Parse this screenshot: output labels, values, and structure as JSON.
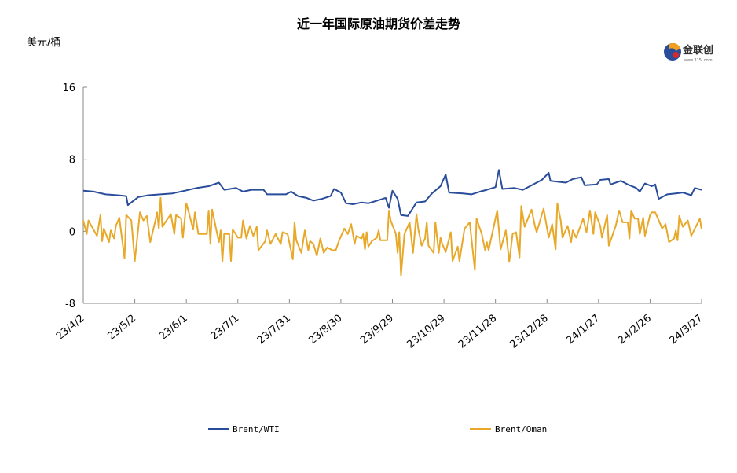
{
  "chart_data": {
    "type": "line",
    "title": "近一年国际原油期货价差走势",
    "ylabel": "美元/桶",
    "xlabel": "",
    "ylim": [
      -8,
      16
    ],
    "yticks": [
      -8,
      0,
      8,
      16
    ],
    "ytick_labels": [
      "-8",
      "0",
      "8",
      "16"
    ],
    "x_unit": "days since 23/4/2",
    "xlim": [
      0,
      360
    ],
    "xticks": [
      0,
      30,
      60,
      90,
      120,
      150,
      180,
      210,
      240,
      270,
      300,
      330,
      360
    ],
    "xtick_labels": [
      "23/4/2",
      "23/5/2",
      "23/6/1",
      "23/7/1",
      "23/7/31",
      "23/8/30",
      "23/9/29",
      "23/10/29",
      "23/11/28",
      "23/12/28",
      "24/1/27",
      "24/2/26",
      "24/3/27"
    ],
    "grid": false,
    "legend_position": "bottom",
    "series": [
      {
        "name": "Brent/WTI",
        "color": "#2a4d9b",
        "points": [
          [
            0,
            4.5
          ],
          [
            6,
            4.4
          ],
          [
            13,
            4.1
          ],
          [
            20,
            4.0
          ],
          [
            25,
            3.9
          ],
          [
            26,
            2.9
          ],
          [
            32,
            3.8
          ],
          [
            38,
            4.0
          ],
          [
            45,
            4.1
          ],
          [
            52,
            4.2
          ],
          [
            59,
            4.5
          ],
          [
            66,
            4.8
          ],
          [
            73,
            5.0
          ],
          [
            79,
            5.4
          ],
          [
            82,
            4.6
          ],
          [
            89,
            4.8
          ],
          [
            93,
            4.4
          ],
          [
            98,
            4.6
          ],
          [
            105,
            4.6
          ],
          [
            107,
            4.1
          ],
          [
            114,
            4.1
          ],
          [
            118,
            4.1
          ],
          [
            121,
            4.4
          ],
          [
            125,
            3.9
          ],
          [
            130,
            3.7
          ],
          [
            134,
            3.4
          ],
          [
            139,
            3.6
          ],
          [
            144,
            3.9
          ],
          [
            146,
            4.7
          ],
          [
            150,
            4.3
          ],
          [
            153,
            3.1
          ],
          [
            157,
            3.0
          ],
          [
            162,
            3.2
          ],
          [
            166,
            3.1
          ],
          [
            171,
            3.4
          ],
          [
            176,
            3.7
          ],
          [
            178,
            2.6
          ],
          [
            180,
            4.5
          ],
          [
            183,
            3.6
          ],
          [
            185,
            1.8
          ],
          [
            189,
            1.7
          ],
          [
            194,
            3.2
          ],
          [
            199,
            3.3
          ],
          [
            203,
            4.2
          ],
          [
            208,
            5.0
          ],
          [
            211,
            6.3
          ],
          [
            213,
            4.3
          ],
          [
            221,
            4.2
          ],
          [
            226,
            4.1
          ],
          [
            231,
            4.4
          ],
          [
            235,
            4.6
          ],
          [
            240,
            4.9
          ],
          [
            242,
            6.8
          ],
          [
            244,
            4.7
          ],
          [
            251,
            4.8
          ],
          [
            256,
            4.6
          ],
          [
            263,
            5.3
          ],
          [
            267,
            5.7
          ],
          [
            271,
            6.5
          ],
          [
            272,
            5.6
          ],
          [
            276,
            5.5
          ],
          [
            281,
            5.4
          ],
          [
            285,
            5.8
          ],
          [
            290,
            6.0
          ],
          [
            292,
            5.1
          ],
          [
            299,
            5.2
          ],
          [
            301,
            5.7
          ],
          [
            306,
            5.8
          ],
          [
            307,
            5.2
          ],
          [
            313,
            5.6
          ],
          [
            317,
            5.2
          ],
          [
            322,
            4.8
          ],
          [
            324,
            4.4
          ],
          [
            327,
            5.3
          ],
          [
            331,
            5.0
          ],
          [
            333,
            5.2
          ],
          [
            335,
            3.6
          ],
          [
            340,
            4.1
          ],
          [
            345,
            4.2
          ],
          [
            349,
            4.3
          ],
          [
            354,
            4.0
          ],
          [
            356,
            4.8
          ],
          [
            360,
            4.6
          ]
        ]
      },
      {
        "name": "Brent/Oman",
        "color": "#e8a92a",
        "points": [
          [
            0,
            1.2
          ],
          [
            2,
            -0.3
          ],
          [
            3,
            1.2
          ],
          [
            8,
            -0.5
          ],
          [
            10,
            1.8
          ],
          [
            11,
            -1.1
          ],
          [
            12,
            0.3
          ],
          [
            15,
            -1.2
          ],
          [
            16,
            0.1
          ],
          [
            18,
            -0.8
          ],
          [
            19,
            0.6
          ],
          [
            21,
            1.5
          ],
          [
            24,
            -3.0
          ],
          [
            25,
            1.8
          ],
          [
            28,
            1.2
          ],
          [
            30,
            -3.3
          ],
          [
            33,
            2.1
          ],
          [
            35,
            1.2
          ],
          [
            37,
            1.7
          ],
          [
            39,
            -1.2
          ],
          [
            42,
            1.2
          ],
          [
            43,
            2.1
          ],
          [
            44,
            0.3
          ],
          [
            45,
            3.7
          ],
          [
            46,
            0.5
          ],
          [
            51,
            1.9
          ],
          [
            53,
            -0.3
          ],
          [
            54,
            1.8
          ],
          [
            57,
            1.4
          ],
          [
            58,
            -0.7
          ],
          [
            60,
            3.1
          ],
          [
            61,
            2.4
          ],
          [
            64,
            0.2
          ],
          [
            65,
            2.1
          ],
          [
            67,
            -0.3
          ],
          [
            72,
            -0.3
          ],
          [
            73,
            2.3
          ],
          [
            74,
            -1.4
          ],
          [
            75,
            2.4
          ],
          [
            77,
            0.6
          ],
          [
            79,
            -1.2
          ],
          [
            80,
            0.1
          ],
          [
            81,
            -3.4
          ],
          [
            82,
            -0.3
          ],
          [
            85,
            -0.3
          ],
          [
            86,
            -3.3
          ],
          [
            87,
            0.2
          ],
          [
            90,
            -0.7
          ],
          [
            92,
            -0.7
          ],
          [
            93,
            1.2
          ],
          [
            95,
            -0.8
          ],
          [
            97,
            0.6
          ],
          [
            99,
            -0.5
          ],
          [
            101,
            0.5
          ],
          [
            102,
            -2.1
          ],
          [
            106,
            -1.1
          ],
          [
            107,
            0.1
          ],
          [
            109,
            -1.4
          ],
          [
            112,
            -0.3
          ],
          [
            115,
            -1.4
          ],
          [
            116,
            -0.1
          ],
          [
            119,
            -0.3
          ],
          [
            122,
            -3.1
          ],
          [
            123,
            1.0
          ],
          [
            124,
            -1.0
          ],
          [
            127,
            -2.4
          ],
          [
            129,
            0.1
          ],
          [
            131,
            -2.1
          ],
          [
            132,
            -1.1
          ],
          [
            134,
            -1.4
          ],
          [
            136,
            -2.7
          ],
          [
            138,
            -0.8
          ],
          [
            140,
            -2.4
          ],
          [
            142,
            -1.8
          ],
          [
            145,
            -2.1
          ],
          [
            147,
            -2.1
          ],
          [
            149,
            -1.0
          ],
          [
            152,
            0.3
          ],
          [
            154,
            -0.3
          ],
          [
            156,
            0.8
          ],
          [
            158,
            -1.4
          ],
          [
            159,
            -0.5
          ],
          [
            162,
            -0.8
          ],
          [
            163,
            -0.3
          ],
          [
            164,
            -2.0
          ],
          [
            165,
            -0.1
          ],
          [
            166,
            -1.7
          ],
          [
            168,
            -1.1
          ],
          [
            171,
            -0.7
          ],
          [
            172,
            0.1
          ],
          [
            173,
            -1.0
          ],
          [
            177,
            -1.0
          ],
          [
            178,
            2.3
          ],
          [
            179,
            1.2
          ],
          [
            182,
            -0.3
          ],
          [
            183,
            -2.4
          ],
          [
            184,
            -0.1
          ],
          [
            185,
            -4.9
          ],
          [
            187,
            -0.3
          ],
          [
            190,
            1.0
          ],
          [
            192,
            -2.4
          ],
          [
            194,
            1.9
          ],
          [
            195,
            0.3
          ],
          [
            197,
            -1.6
          ],
          [
            199,
            -0.8
          ],
          [
            200,
            1.0
          ],
          [
            201,
            -1.6
          ],
          [
            204,
            -2.4
          ],
          [
            205,
            1.0
          ],
          [
            207,
            -2.4
          ],
          [
            208,
            -0.7
          ],
          [
            209,
            -1.4
          ],
          [
            211,
            -2.3
          ],
          [
            214,
            -0.1
          ],
          [
            215,
            -3.3
          ],
          [
            218,
            -1.7
          ],
          [
            219,
            -3.3
          ],
          [
            222,
            0.3
          ],
          [
            225,
            1.0
          ],
          [
            228,
            -4.3
          ],
          [
            229,
            1.4
          ],
          [
            232,
            -0.3
          ],
          [
            234,
            -2.1
          ],
          [
            235,
            -1.2
          ],
          [
            236,
            -2.1
          ],
          [
            241,
            2.3
          ],
          [
            243,
            -2.0
          ],
          [
            246,
            0.1
          ],
          [
            248,
            -3.4
          ],
          [
            250,
            -0.3
          ],
          [
            252,
            -0.1
          ],
          [
            254,
            -2.9
          ],
          [
            255,
            2.8
          ],
          [
            257,
            0.5
          ],
          [
            261,
            2.4
          ],
          [
            263,
            0.6
          ],
          [
            264,
            -0.1
          ],
          [
            268,
            2.5
          ],
          [
            271,
            -0.7
          ],
          [
            273,
            0.8
          ],
          [
            275,
            -2.0
          ],
          [
            276,
            3.1
          ],
          [
            278,
            1.2
          ],
          [
            279,
            -0.7
          ],
          [
            282,
            0.6
          ],
          [
            284,
            -1.2
          ],
          [
            285,
            0.1
          ],
          [
            287,
            -0.7
          ],
          [
            291,
            1.4
          ],
          [
            293,
            -0.1
          ],
          [
            295,
            2.3
          ],
          [
            297,
            -0.3
          ],
          [
            298,
            2.1
          ],
          [
            301,
            0.6
          ],
          [
            302,
            -0.7
          ],
          [
            305,
            1.8
          ],
          [
            306,
            -1.6
          ],
          [
            310,
            0.6
          ],
          [
            312,
            2.3
          ],
          [
            314,
            1.0
          ],
          [
            317,
            1.0
          ],
          [
            318,
            -0.8
          ],
          [
            319,
            2.3
          ],
          [
            321,
            1.4
          ],
          [
            323,
            1.4
          ],
          [
            324,
            -0.3
          ],
          [
            326,
            1.5
          ],
          [
            327,
            -0.5
          ],
          [
            330,
            1.8
          ],
          [
            331,
            2.1
          ],
          [
            333,
            2.1
          ],
          [
            336,
            0.8
          ],
          [
            337,
            0.3
          ],
          [
            339,
            0.8
          ],
          [
            341,
            -1.2
          ],
          [
            344,
            -0.8
          ],
          [
            345,
            0.1
          ],
          [
            346,
            -1.0
          ],
          [
            347,
            1.7
          ],
          [
            349,
            0.5
          ],
          [
            352,
            1.2
          ],
          [
            354,
            -0.5
          ],
          [
            359,
            1.4
          ],
          [
            360,
            0.2
          ]
        ]
      }
    ]
  },
  "logo": {
    "text": "金联创",
    "subtext": "www.315i.com"
  }
}
